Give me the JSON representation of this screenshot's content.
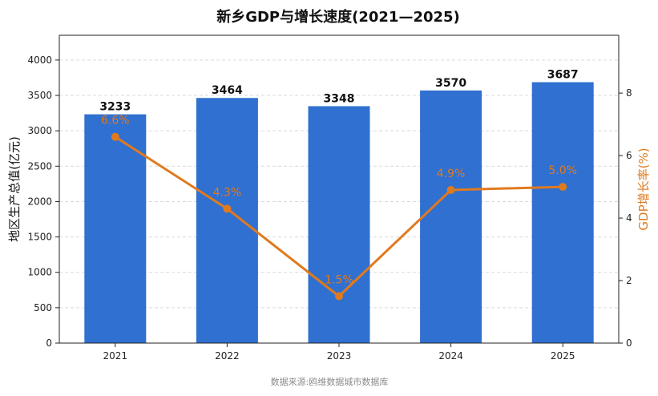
{
  "chart_data": {
    "type": "bar",
    "title": "新乡GDP与增长速度(2021—2025)",
    "categories": [
      "2021",
      "2022",
      "2023",
      "2024",
      "2025"
    ],
    "series": [
      {
        "values": [
          3233,
          3464,
          3348,
          3570,
          3687
        ],
        "color": "#3070D0",
        "axis": "left"
      },
      {
        "values": [
          6.6,
          4.3,
          1.5,
          4.9,
          5.0
        ],
        "color": "#E07A1F",
        "axis": "right"
      }
    ],
    "bar_labels": [
      "3233",
      "3464",
      "3348",
      "3570",
      "3687"
    ],
    "point_labels": [
      "6.6%",
      "4.3%",
      "1.5%",
      "4.9%",
      "5.0%"
    ],
    "ylabel": "地区生产总值(亿元)",
    "y2label": "GDP增长率(%)",
    "ylim": [
      0,
      4350
    ],
    "y2lim": [
      0,
      9.85
    ],
    "yticks": [
      0,
      500,
      1000,
      1500,
      2000,
      2500,
      3000,
      3500,
      4000
    ],
    "y2ticks": [
      0,
      2,
      4,
      6,
      8
    ],
    "grid": true,
    "source": "数据来源:鸥维数据城市数据库"
  }
}
